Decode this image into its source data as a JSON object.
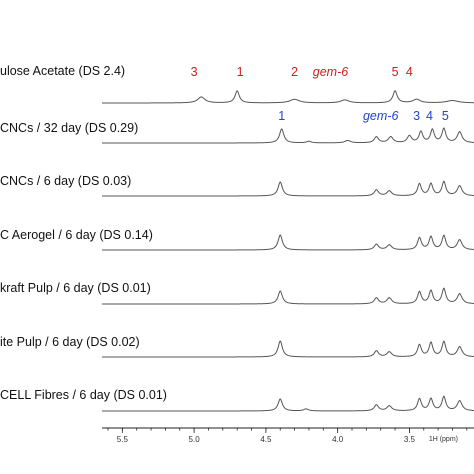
{
  "chart_data": {
    "type": "line",
    "title": "",
    "xlabel": "1H (ppm)",
    "ylabel": "",
    "x_axis": {
      "reversed": true,
      "visible_range": [
        5.6,
        3.05
      ],
      "ticks": [
        5.5,
        5.0,
        4.5,
        4.0,
        3.5
      ],
      "tick_labels": [
        "5.5",
        "5.0",
        "4.5",
        "4.0",
        "3.5"
      ]
    },
    "grid": false,
    "series": [
      {
        "name": "ulose Acetate (DS 2.4)",
        "peaks": [
          {
            "ppm": 4.95,
            "height": 0.3,
            "width": 0.03
          },
          {
            "ppm": 4.7,
            "height": 0.6,
            "width": 0.018
          },
          {
            "ppm": 4.3,
            "height": 0.18,
            "width": 0.04
          },
          {
            "ppm": 3.95,
            "height": 0.15,
            "width": 0.035
          },
          {
            "ppm": 3.6,
            "height": 0.6,
            "width": 0.018
          },
          {
            "ppm": 3.45,
            "height": 0.18,
            "width": 0.03
          },
          {
            "ppm": 3.2,
            "height": 0.12,
            "width": 0.05
          }
        ],
        "annotations": [
          {
            "text": "3",
            "ppm": 5.0,
            "color": "red"
          },
          {
            "text": "1",
            "ppm": 4.68,
            "color": "red"
          },
          {
            "text": "2",
            "ppm": 4.3,
            "color": "red"
          },
          {
            "text": "gem-6",
            "ppm": 4.05,
            "color": "red",
            "italic": true
          },
          {
            "text": "5",
            "ppm": 3.6,
            "color": "red"
          },
          {
            "text": "4",
            "ppm": 3.5,
            "color": "red"
          }
        ]
      },
      {
        "name": "CNCs / 32 day (DS 0.29)",
        "peaks": [
          {
            "ppm": 4.39,
            "height": 0.7,
            "width": 0.018
          },
          {
            "ppm": 4.2,
            "height": 0.08,
            "width": 0.02
          },
          {
            "ppm": 3.93,
            "height": 0.12,
            "width": 0.025
          },
          {
            "ppm": 3.73,
            "height": 0.3,
            "width": 0.018
          },
          {
            "ppm": 3.63,
            "height": 0.3,
            "width": 0.02
          },
          {
            "ppm": 3.5,
            "height": 0.35,
            "width": 0.018
          },
          {
            "ppm": 3.42,
            "height": 0.55,
            "width": 0.016
          },
          {
            "ppm": 3.34,
            "height": 0.65,
            "width": 0.016
          },
          {
            "ppm": 3.26,
            "height": 0.7,
            "width": 0.016
          },
          {
            "ppm": 3.15,
            "height": 0.55,
            "width": 0.02
          }
        ],
        "annotations": [
          {
            "text": "1",
            "ppm": 4.39,
            "color": "blue"
          },
          {
            "text": "gem-6",
            "ppm": 3.7,
            "color": "blue",
            "italic": true
          },
          {
            "text": "3",
            "ppm": 3.45,
            "color": "blue"
          },
          {
            "text": "4",
            "ppm": 3.36,
            "color": "blue"
          },
          {
            "text": "5",
            "ppm": 3.25,
            "color": "blue"
          }
        ]
      },
      {
        "name": "CNCs / 6 day (DS 0.03)",
        "peaks": [
          {
            "ppm": 4.4,
            "height": 0.7,
            "width": 0.018
          },
          {
            "ppm": 3.73,
            "height": 0.3,
            "width": 0.018
          },
          {
            "ppm": 3.64,
            "height": 0.25,
            "width": 0.02
          },
          {
            "ppm": 3.43,
            "height": 0.6,
            "width": 0.016
          },
          {
            "ppm": 3.35,
            "height": 0.6,
            "width": 0.016
          },
          {
            "ppm": 3.26,
            "height": 0.7,
            "width": 0.016
          },
          {
            "ppm": 3.15,
            "height": 0.5,
            "width": 0.02
          }
        ],
        "annotations": []
      },
      {
        "name": "C Aerogel / 6 day (DS 0.14)",
        "peaks": [
          {
            "ppm": 4.4,
            "height": 0.75,
            "width": 0.018
          },
          {
            "ppm": 3.73,
            "height": 0.28,
            "width": 0.018
          },
          {
            "ppm": 3.64,
            "height": 0.25,
            "width": 0.02
          },
          {
            "ppm": 3.43,
            "height": 0.6,
            "width": 0.016
          },
          {
            "ppm": 3.35,
            "height": 0.65,
            "width": 0.016
          },
          {
            "ppm": 3.26,
            "height": 0.7,
            "width": 0.016
          },
          {
            "ppm": 3.15,
            "height": 0.5,
            "width": 0.02
          }
        ],
        "annotations": []
      },
      {
        "name": "kraft Pulp / 6 day (DS 0.01)",
        "peaks": [
          {
            "ppm": 4.4,
            "height": 0.65,
            "width": 0.018
          },
          {
            "ppm": 3.73,
            "height": 0.3,
            "width": 0.018
          },
          {
            "ppm": 3.64,
            "height": 0.3,
            "width": 0.02
          },
          {
            "ppm": 3.43,
            "height": 0.6,
            "width": 0.016
          },
          {
            "ppm": 3.35,
            "height": 0.65,
            "width": 0.016
          },
          {
            "ppm": 3.26,
            "height": 0.75,
            "width": 0.016
          },
          {
            "ppm": 3.15,
            "height": 0.5,
            "width": 0.02
          }
        ],
        "annotations": []
      },
      {
        "name": "ite Pulp / 6 day (DS 0.02)",
        "peaks": [
          {
            "ppm": 4.4,
            "height": 0.8,
            "width": 0.018
          },
          {
            "ppm": 3.73,
            "height": 0.3,
            "width": 0.018
          },
          {
            "ppm": 3.64,
            "height": 0.25,
            "width": 0.02
          },
          {
            "ppm": 3.43,
            "height": 0.6,
            "width": 0.016
          },
          {
            "ppm": 3.35,
            "height": 0.7,
            "width": 0.016
          },
          {
            "ppm": 3.26,
            "height": 0.75,
            "width": 0.016
          },
          {
            "ppm": 3.15,
            "height": 0.5,
            "width": 0.02
          }
        ],
        "annotations": []
      },
      {
        "name": "CELL Fibres / 6 day (DS 0.01)",
        "peaks": [
          {
            "ppm": 4.4,
            "height": 0.6,
            "width": 0.018
          },
          {
            "ppm": 4.22,
            "height": 0.1,
            "width": 0.02
          },
          {
            "ppm": 3.73,
            "height": 0.3,
            "width": 0.018
          },
          {
            "ppm": 3.64,
            "height": 0.25,
            "width": 0.02
          },
          {
            "ppm": 3.43,
            "height": 0.6,
            "width": 0.016
          },
          {
            "ppm": 3.35,
            "height": 0.6,
            "width": 0.016
          },
          {
            "ppm": 3.26,
            "height": 0.7,
            "width": 0.016
          },
          {
            "ppm": 3.15,
            "height": 0.5,
            "width": 0.02
          }
        ],
        "annotations": []
      }
    ]
  }
}
